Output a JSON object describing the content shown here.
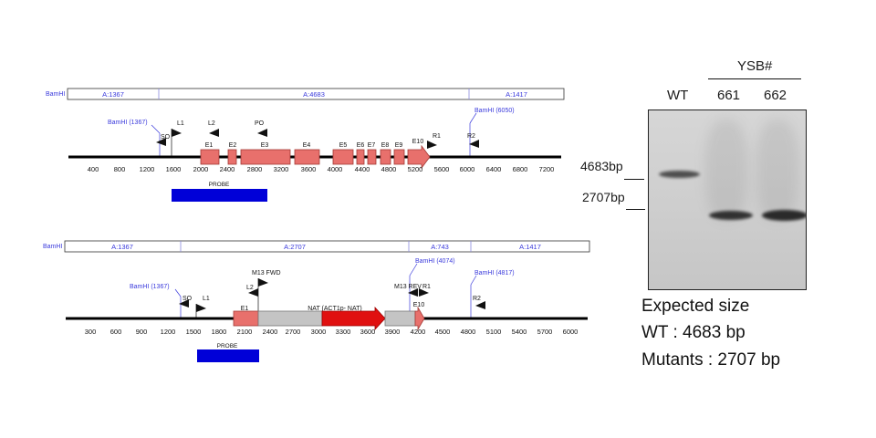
{
  "map_top": {
    "segment_prefix": "BamHI",
    "segments": [
      "A:1367",
      "A:4683",
      "A:1417"
    ],
    "ruler_ticks": [
      "400",
      "800",
      "1200",
      "1600",
      "2000",
      "2400",
      "2800",
      "3200",
      "3600",
      "4000",
      "4400",
      "4800",
      "5200",
      "5600",
      "6000",
      "6400",
      "6800",
      "7200"
    ],
    "sites": [
      "BamHI (1367)",
      "BamHI (6050)"
    ],
    "primers": [
      "SO",
      "L1",
      "L2",
      "PO",
      "R1",
      "R2"
    ],
    "exons": [
      "E1",
      "E2",
      "E3",
      "E4",
      "E5",
      "E6",
      "E7",
      "E8",
      "E9",
      "E10"
    ],
    "probe_label": "PROBE"
  },
  "map_bottom": {
    "segment_prefix": "BamHI",
    "segments": [
      "A:1367",
      "A:2707",
      "A:743",
      "A:1417"
    ],
    "ruler_ticks": [
      "300",
      "600",
      "900",
      "1200",
      "1500",
      "1800",
      "2100",
      "2400",
      "2700",
      "3000",
      "3300",
      "3600",
      "3900",
      "4200",
      "4500",
      "4800",
      "5100",
      "5400",
      "5700",
      "6000"
    ],
    "sites": [
      "BamHI (1367)",
      "BamHI (4074)",
      "BamHI (4817)"
    ],
    "primers": [
      "SO",
      "L1",
      "L2",
      "M13 FWD",
      "M13 REV",
      "R1",
      "R2"
    ],
    "exons": [
      "E1",
      "E10"
    ],
    "cassette_label": "NAT (ACT1p- NAT)",
    "probe_label": "PROBE"
  },
  "blot": {
    "group_label": "YSB#",
    "lanes": [
      "WT",
      "661",
      "662"
    ],
    "markers": [
      "4683bp",
      "2707bp"
    ]
  },
  "expected": {
    "line1": "Expected size",
    "line2": "WT : 4683 bp",
    "line3": "Mutants : 2707 bp"
  },
  "colors": {
    "exon": "#e8706c",
    "exon_stroke": "#a33a36",
    "probe": "#0000d8",
    "nat": "#e01010",
    "cassette": "#c4c4c4",
    "bamhi_blue": "#3a3adc"
  }
}
